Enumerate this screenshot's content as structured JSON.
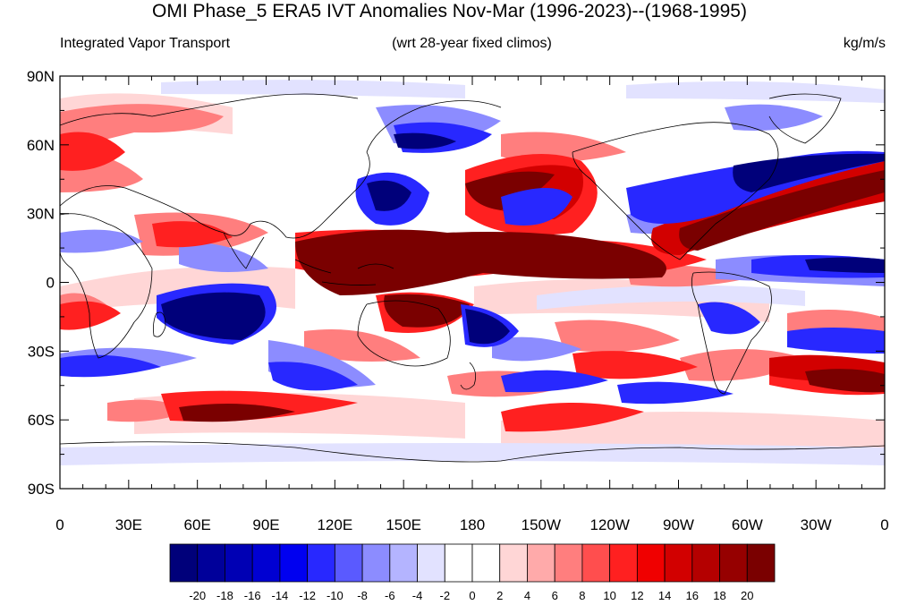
{
  "title": "OMI Phase_5 ERA5 IVT Anomalies Nov-Mar (1996-2023)--(1968-1995)",
  "left_string": "Integrated Vapor Transport",
  "center_string": "(wrt 28-year fixed climos)",
  "right_string": "kg/m/s",
  "map": {
    "projection": "cylindrical equidistant",
    "lon_range": [
      0,
      360
    ],
    "lat_range": [
      -90,
      90
    ],
    "lat_ticks": [
      "90N",
      "60N",
      "30N",
      "0",
      "30S",
      "60S",
      "90S"
    ],
    "lon_ticks": [
      "0",
      "30E",
      "60E",
      "90E",
      "120E",
      "150E",
      "180",
      "150W",
      "120W",
      "90W",
      "60W",
      "30W",
      "0"
    ]
  },
  "colorbar": {
    "labels": [
      "-20",
      "-18",
      "-16",
      "-14",
      "-12",
      "-10",
      "-8",
      "-6",
      "-4",
      "-2",
      "0",
      "2",
      "4",
      "6",
      "8",
      "10",
      "12",
      "14",
      "16",
      "18",
      "20"
    ],
    "colors": [
      "#00007a",
      "#00009a",
      "#0000b4",
      "#0000d2",
      "#0000f0",
      "#2828ff",
      "#5a5aff",
      "#8c8cff",
      "#b4b4ff",
      "#e2e2ff",
      "#ffffff",
      "#ffffff",
      "#ffd6d6",
      "#ffaaaa",
      "#ff7e7e",
      "#ff4e4e",
      "#ff2020",
      "#f00000",
      "#d20000",
      "#b40000",
      "#960000",
      "#7a0000"
    ]
  }
}
